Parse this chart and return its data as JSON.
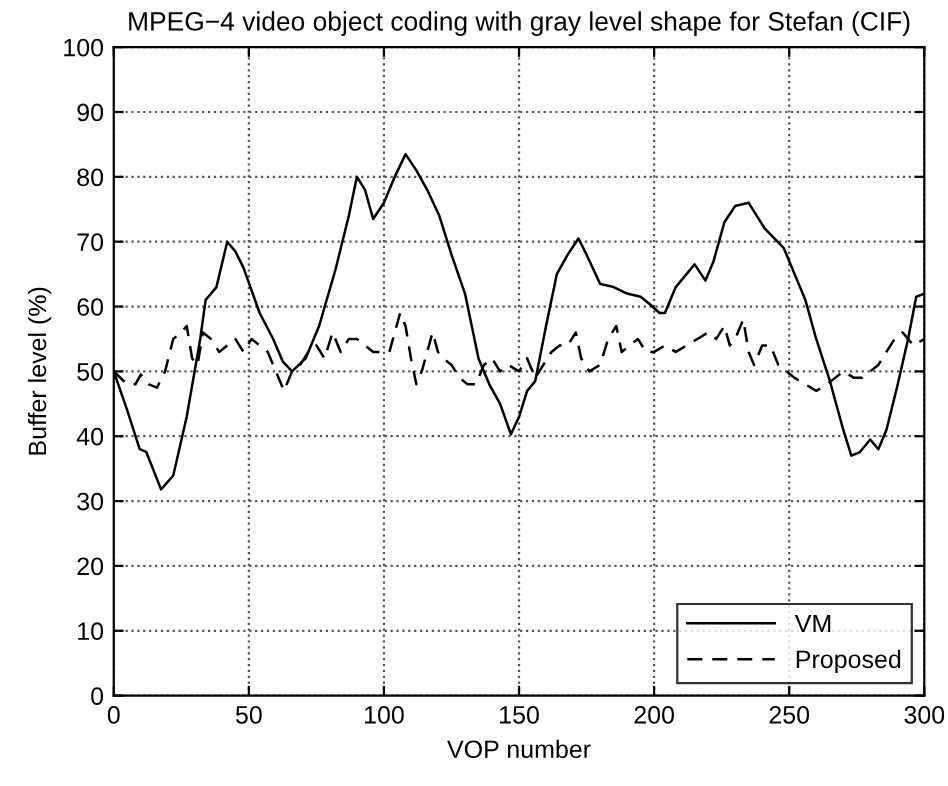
{
  "chart_data": {
    "type": "line",
    "title": "MPEG−4 video object coding with gray level shape for Stefan (CIF)",
    "xlabel": "VOP number",
    "ylabel": "Buffer level (%)",
    "xlim": [
      0,
      300
    ],
    "ylim": [
      0,
      100
    ],
    "xticks": [
      0,
      50,
      100,
      150,
      200,
      250,
      300
    ],
    "yticks": [
      0,
      10,
      20,
      30,
      40,
      50,
      60,
      70,
      80,
      90,
      100
    ],
    "grid": true,
    "legend": "bottom right",
    "series": [
      {
        "name": "VM",
        "color": "#000000",
        "line_style": "solid",
        "x": [
          0,
          5,
          9.6,
          12,
          17.5,
          22,
          27,
          32,
          34,
          38,
          42,
          45,
          48,
          54,
          59,
          62.6,
          66,
          71,
          76,
          82,
          87,
          90,
          93,
          96,
          100,
          104,
          108,
          112,
          116,
          120.5,
          125,
          130,
          135,
          139,
          143,
          147,
          150,
          153,
          156,
          160,
          164,
          168,
          172,
          175,
          180,
          185,
          190,
          195,
          198,
          202,
          204,
          208,
          212,
          215,
          219,
          222,
          226,
          230,
          235,
          241,
          248,
          252,
          256,
          260,
          265,
          270,
          273,
          276,
          280,
          283,
          286,
          290,
          294,
          297,
          300
        ],
        "values": [
          50,
          44,
          38,
          37.6,
          31.8,
          33.9,
          43,
          55,
          61,
          63,
          70,
          68.5,
          66,
          59,
          55,
          51.5,
          50,
          52,
          57,
          65.6,
          74,
          80,
          78,
          73.5,
          76,
          80,
          83.5,
          81,
          78,
          74,
          68,
          62,
          52,
          48,
          45,
          40.3,
          43,
          47,
          48.5,
          57,
          65,
          68,
          70.5,
          68,
          63.5,
          63,
          62,
          61.5,
          60.5,
          59,
          59,
          63,
          65,
          66.5,
          64,
          67,
          73,
          75.5,
          76,
          72,
          69,
          65,
          61,
          55,
          48.6,
          41,
          37,
          37.5,
          39.5,
          38,
          41,
          47.7,
          55,
          61.5,
          62
        ]
      },
      {
        "name": "Proposed",
        "color": "#000000",
        "line_style": "dashed",
        "x": [
          0,
          5,
          8,
          10,
          13,
          16,
          19,
          22,
          25,
          27,
          29,
          31,
          33,
          36,
          39,
          42,
          45,
          48,
          51,
          54,
          57,
          60,
          63,
          66,
          69,
          72,
          75,
          78,
          81,
          84,
          87,
          90,
          93,
          96,
          99,
          102,
          104,
          106,
          108,
          110,
          112,
          114,
          116,
          118,
          120,
          122,
          125,
          128,
          131,
          134,
          137,
          140,
          143,
          146,
          150,
          153,
          156,
          159,
          162,
          165,
          168,
          171,
          173,
          176,
          180,
          183,
          186,
          188,
          191,
          194,
          197,
          200,
          204,
          208,
          212,
          216,
          220,
          223,
          226,
          228,
          230,
          233,
          235,
          237,
          240,
          243,
          246,
          249,
          252,
          256,
          260,
          264,
          267,
          270,
          274,
          277,
          280,
          283,
          286,
          289,
          292,
          296,
          300
        ],
        "values": [
          50,
          48,
          48,
          49.5,
          48,
          47.5,
          50,
          55,
          56,
          57,
          52,
          51,
          56,
          55,
          53,
          54,
          55,
          53,
          55,
          54,
          53,
          50,
          47,
          50,
          51,
          53,
          54,
          52,
          56,
          53,
          55,
          55,
          54,
          53,
          53,
          53,
          56,
          59,
          57,
          52,
          48,
          50,
          53,
          56,
          53,
          52,
          51,
          49,
          48,
          48,
          51,
          52,
          50,
          51,
          50,
          52,
          49,
          51,
          53,
          54,
          54,
          56,
          52,
          50,
          51,
          55,
          57,
          53,
          54,
          55,
          53,
          53,
          54,
          53,
          54,
          55,
          56,
          55,
          57,
          54,
          55,
          58,
          53,
          51,
          54,
          54,
          51,
          50,
          49,
          48,
          47,
          48,
          49,
          50,
          49,
          49,
          50,
          51,
          53,
          55,
          56,
          54,
          55
        ]
      }
    ]
  }
}
